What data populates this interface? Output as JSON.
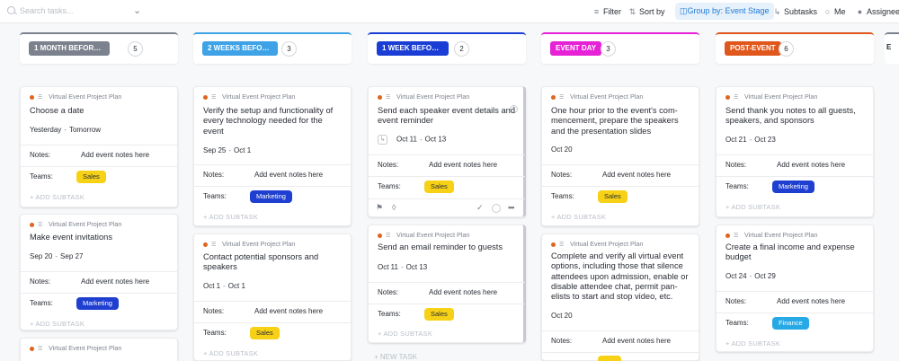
{
  "toolbar": {
    "search_placeholder": "Search tasks...",
    "filter_label": "Filter",
    "sort_label": "Sort by",
    "group_label": "Group by: Event Stage",
    "subtasks_label": "Subtasks",
    "me_label": "Me",
    "assignees_label": "Assignees"
  },
  "colors": {
    "one_month": "#7c828d",
    "two_weeks": "#3ea2e6",
    "one_week": "#1a3ed5",
    "event_day": "#e621d6",
    "post_event": "#e0571c",
    "sales_badge": "#f7d116",
    "marketing_badge": "#1f3fd0",
    "finance_badge": "#27a9e6"
  },
  "columns": [
    {
      "title": "1 MONTH BEFORE...",
      "count": "5",
      "cards": [
        {
          "project": "Virtual Event Project Plan",
          "title": "Choose a date",
          "start": "Yesterday",
          "end": "Tomorrow",
          "notes_label": "Notes:",
          "notes": "Add event notes here",
          "teams_label": "Teams:",
          "team": "Sales",
          "add_subtask": "+ ADD SUBTASK"
        },
        {
          "project": "Virtual Event Project Plan",
          "title": "Make event invitations",
          "start": "Sep 20",
          "end": "Sep 27",
          "notes_label": "Notes:",
          "notes": "Add event notes here",
          "teams_label": "Teams:",
          "team": "Marketing",
          "add_subtask": "+ ADD SUBTASK"
        },
        {
          "project": "Virtual Event Project Plan"
        }
      ]
    },
    {
      "title": "2 WEEKS BEFORE ...",
      "count": "3",
      "cards": [
        {
          "project": "Virtual Event Project Plan",
          "title": "Verify the setup and functionality of every technology needed for the event",
          "start": "Sep 25",
          "end": "Oct 1",
          "notes_label": "Notes:",
          "notes": "Add event notes here",
          "teams_label": "Teams:",
          "team": "Marketing",
          "add_subtask": "+ ADD SUBTASK"
        },
        {
          "project": "Virtual Event Project Plan",
          "title": "Contact potential sponsors and speakers",
          "start": "Oct 1",
          "end": "Oct 1",
          "notes_label": "Notes:",
          "notes": "Add event notes here",
          "teams_label": "Teams:",
          "team": "Sales",
          "add_subtask": "+ ADD SUBTASK"
        }
      ]
    },
    {
      "title": "1 WEEK BEFORE T...",
      "count": "2",
      "cards": [
        {
          "project": "Virtual Event Project Plan",
          "title": "Send each speaker event details and event reminder",
          "start": "Oct 11",
          "end": "Oct 13",
          "notes_label": "Notes:",
          "notes": "Add event notes here",
          "teams_label": "Teams:",
          "team": "Sales"
        },
        {
          "project": "Virtual Event Project Plan",
          "title": "Send an email reminder to guests",
          "start": "Oct 11",
          "end": "Oct 13",
          "notes_label": "Notes:",
          "notes": "Add event notes here",
          "teams_label": "Teams:",
          "team": "Sales",
          "add_subtask": "+ ADD SUBTASK"
        }
      ],
      "new_task": "+ NEW TASK"
    },
    {
      "title": "EVENT DAY",
      "count": "3",
      "cards": [
        {
          "project": "Virtual Event Project Plan",
          "title": "One hour prior to the event's com- mencement, prepare the speakers and the presentation slides",
          "start": "Oct 20",
          "notes_label": "Notes:",
          "notes": "Add event notes here",
          "teams_label": "Teams:",
          "team": "Sales",
          "add_subtask": "+ ADD SUBTASK"
        },
        {
          "project": "Virtual Event Project Plan",
          "title": "Complete and verify all virtual event options, including those that silence attendees upon admission, enable or disable attendee chat, permit pan- elists to start and stop video, etc.",
          "start": "Oct 20",
          "notes_label": "Notes:",
          "notes": "Add event notes here"
        }
      ]
    },
    {
      "title": "POST-EVENT",
      "count": "6",
      "cards": [
        {
          "project": "Virtual Event Project Plan",
          "title": "Send thank you notes to all guests, speakers, and sponsors",
          "start": "Oct 21",
          "end": "Oct 23",
          "notes_label": "Notes:",
          "notes": "Add event notes here",
          "teams_label": "Teams:",
          "team": "Marketing",
          "add_subtask": "+ ADD SUBTASK"
        },
        {
          "project": "Virtual Event Project Plan",
          "title": "Create a final income and expense budget",
          "start": "Oct 24",
          "end": "Oct 29",
          "notes_label": "Notes:",
          "notes": "Add event notes here",
          "teams_label": "Teams:",
          "team": "Finance",
          "add_subtask": "+ ADD SUBTASK"
        }
      ]
    }
  ],
  "partial_column_letter": "E"
}
